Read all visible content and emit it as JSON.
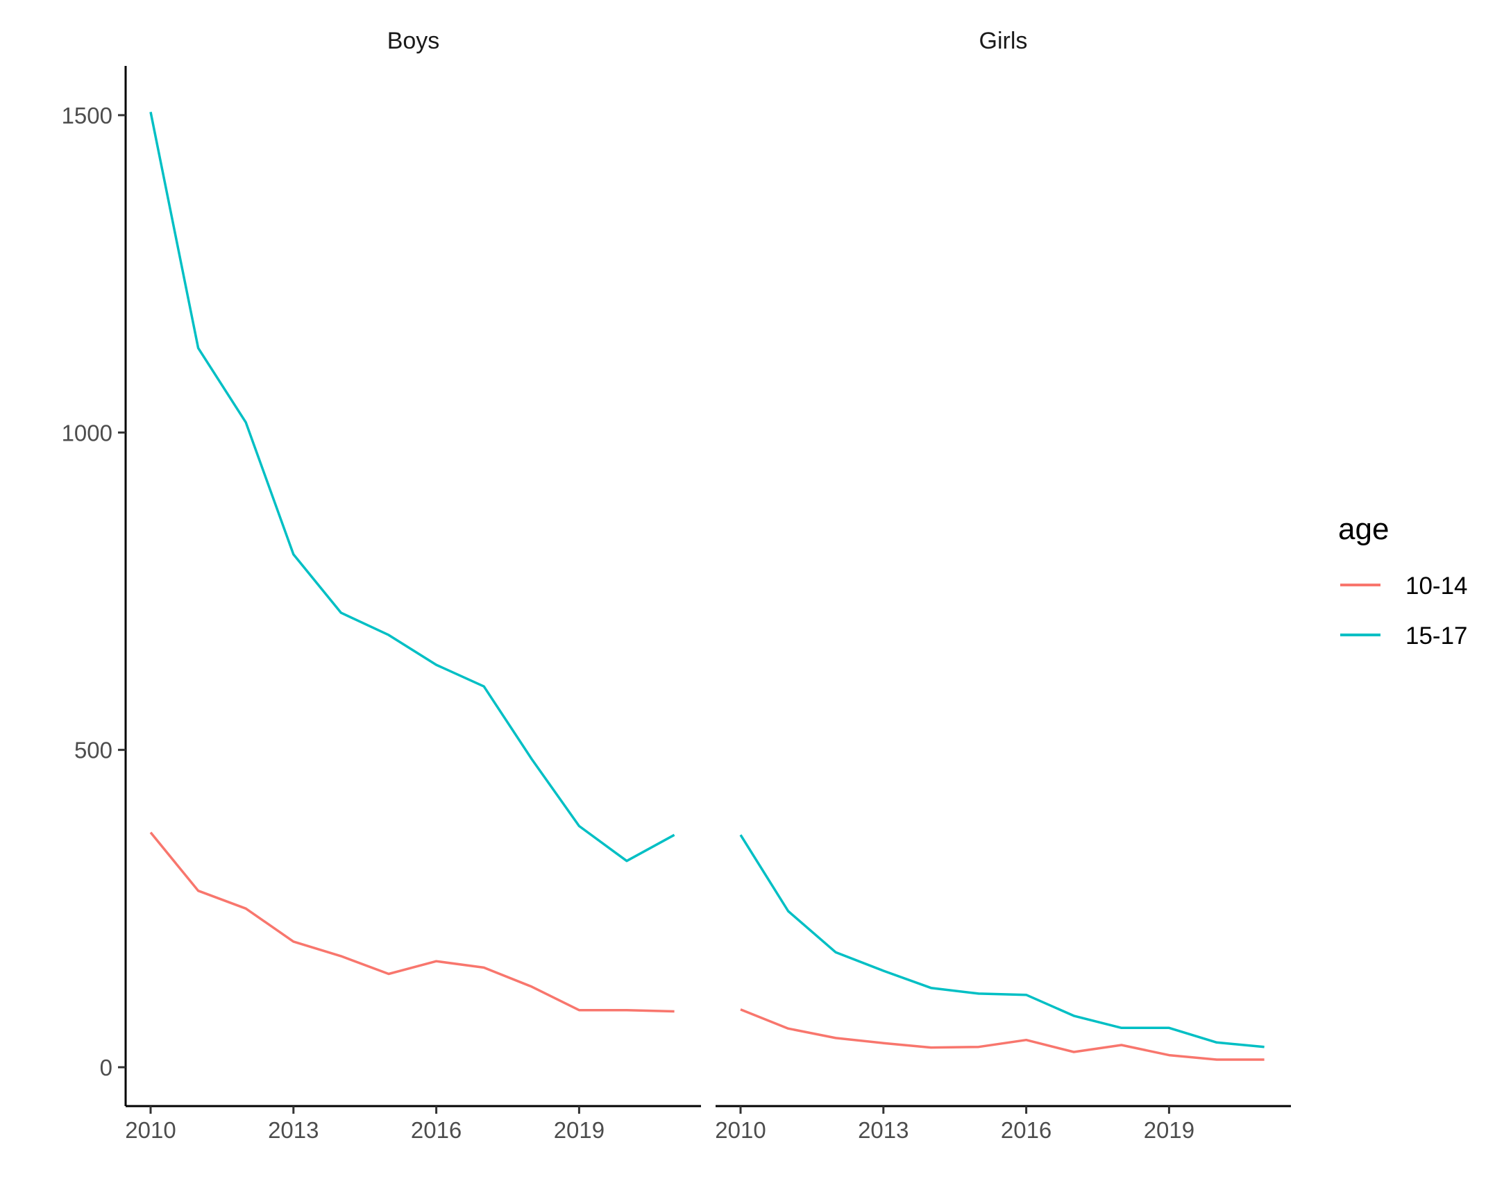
{
  "chart_data": {
    "type": "line",
    "facet_by": "sex",
    "facets": [
      "Boys",
      "Girls"
    ],
    "x": [
      2010,
      2011,
      2012,
      2013,
      2014,
      2015,
      2016,
      2017,
      2018,
      2019,
      2020,
      2021
    ],
    "x_ticks": [
      "2010",
      "2013",
      "2016",
      "2019"
    ],
    "y_ticks": [
      "0",
      "500",
      "1000",
      "1500"
    ],
    "xlim": [
      2010,
      2021
    ],
    "ylim": [
      -60,
      1575
    ],
    "xlabel": "",
    "ylabel": "",
    "grid": false,
    "legend": {
      "title": "age",
      "position": "right",
      "entries": [
        {
          "label": "10-14",
          "color": "#F8766D"
        },
        {
          "label": "15-17",
          "color": "#00BFC4"
        }
      ]
    },
    "panels": [
      {
        "title": "Boys",
        "series": [
          {
            "name": "10-14",
            "color": "#F8766D",
            "values": [
              370,
              278,
              250,
              198,
              175,
              147,
              167,
              157,
              127,
              90,
              90,
              88
            ]
          },
          {
            "name": "15-17",
            "color": "#00BFC4",
            "values": [
              1505,
              1133,
              1016,
              808,
              716,
              681,
              634,
              600,
              486,
              380,
              325,
              366
            ]
          }
        ]
      },
      {
        "title": "Girls",
        "series": [
          {
            "name": "10-14",
            "color": "#F8766D",
            "values": [
              91,
              61,
              46,
              38,
              31,
              32,
              43,
              24,
              35,
              19,
              12,
              12
            ]
          },
          {
            "name": "15-17",
            "color": "#00BFC4",
            "values": [
              366,
              246,
              181,
              152,
              125,
              116,
              114,
              81,
              62,
              62,
              39,
              32
            ]
          }
        ]
      }
    ]
  }
}
